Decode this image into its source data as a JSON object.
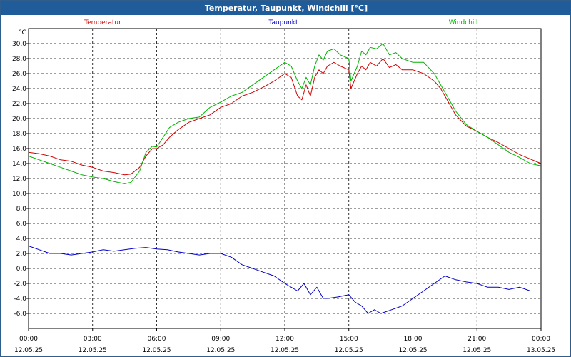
{
  "window": {
    "title": "Temperatur, Taupunkt, Windchill [°C]"
  },
  "chart_data": {
    "type": "line",
    "title": "Temperatur, Taupunkt, Windchill [°C]",
    "ylabel": "°C",
    "ylim": [
      -8,
      32
    ],
    "xlim": [
      0,
      24
    ],
    "yticks": [
      {
        "value": -6,
        "label": "-6,0"
      },
      {
        "value": -4,
        "label": "-4,0"
      },
      {
        "value": -2,
        "label": "-2,0"
      },
      {
        "value": 0,
        "label": "0,0"
      },
      {
        "value": 2,
        "label": "2,0"
      },
      {
        "value": 4,
        "label": "4,0"
      },
      {
        "value": 6,
        "label": "6,0"
      },
      {
        "value": 8,
        "label": "8,0"
      },
      {
        "value": 10,
        "label": "10,0"
      },
      {
        "value": 12,
        "label": "12,0"
      },
      {
        "value": 14,
        "label": "14,0"
      },
      {
        "value": 16,
        "label": "16,0"
      },
      {
        "value": 18,
        "label": "18,0"
      },
      {
        "value": 20,
        "label": "20,0"
      },
      {
        "value": 22,
        "label": "22,0"
      },
      {
        "value": 24,
        "label": "24,0"
      },
      {
        "value": 26,
        "label": "26,0"
      },
      {
        "value": 28,
        "label": "28,0"
      },
      {
        "value": 30,
        "label": "30,0"
      }
    ],
    "xticks": [
      {
        "value": 0,
        "time": "00:00",
        "date": "12.05.25"
      },
      {
        "value": 3,
        "time": "03:00",
        "date": "12.05.25"
      },
      {
        "value": 6,
        "time": "06:00",
        "date": "12.05.25"
      },
      {
        "value": 9,
        "time": "09:00",
        "date": "12.05.25"
      },
      {
        "value": 12,
        "time": "12:00",
        "date": "12.05.25"
      },
      {
        "value": 15,
        "time": "15:00",
        "date": "12.05.25"
      },
      {
        "value": 18,
        "time": "18:00",
        "date": "12.05.25"
      },
      {
        "value": 21,
        "time": "21:00",
        "date": "12.05.25"
      },
      {
        "value": 24,
        "time": "00:00",
        "date": "13.05.25"
      }
    ],
    "series": [
      {
        "name": "Temperatur",
        "color": "#d40000",
        "x": [
          0,
          0.5,
          1,
          1.5,
          2,
          2.5,
          3,
          3.5,
          4,
          4.5,
          4.8,
          5.2,
          5.5,
          5.8,
          6,
          6.3,
          6.6,
          7,
          7.5,
          8,
          8.5,
          9,
          9.5,
          10,
          10.5,
          11,
          11.5,
          12,
          12.3,
          12.6,
          12.8,
          13,
          13.2,
          13.4,
          13.6,
          13.8,
          14,
          14.3,
          14.6,
          15,
          15.1,
          15.4,
          15.6,
          15.8,
          16,
          16.3,
          16.6,
          16.9,
          17.2,
          17.5,
          18,
          18.5,
          19,
          19.3,
          19.6,
          20,
          20.5,
          21,
          21.5,
          22,
          22.5,
          23,
          23.5,
          24
        ],
        "values": [
          15.5,
          15.3,
          15.0,
          14.5,
          14.3,
          13.8,
          13.5,
          13.0,
          12.8,
          12.5,
          12.6,
          13.5,
          15.0,
          16.0,
          16.0,
          16.5,
          17.5,
          18.5,
          19.5,
          20.0,
          20.5,
          21.5,
          22.0,
          23.0,
          23.5,
          24.2,
          25.0,
          26.0,
          25.5,
          23.0,
          22.5,
          24.5,
          23.0,
          25.5,
          26.5,
          26.0,
          27.0,
          27.5,
          27.0,
          26.5,
          24.0,
          26.0,
          27.0,
          26.5,
          27.5,
          27.0,
          28.0,
          26.8,
          27.2,
          26.5,
          26.5,
          26.0,
          25.0,
          24.0,
          22.5,
          20.5,
          19.0,
          18.3,
          17.5,
          16.8,
          16.0,
          15.2,
          14.6,
          14.0
        ]
      },
      {
        "name": "Taupunkt",
        "color": "#0000c8",
        "x": [
          0,
          0.5,
          1,
          1.5,
          2,
          2.5,
          3,
          3.5,
          4,
          4.5,
          5,
          5.5,
          6,
          6.5,
          7,
          7.5,
          8,
          8.5,
          9,
          9.5,
          10,
          10.5,
          11,
          11.5,
          12,
          12.3,
          12.6,
          12.9,
          13.2,
          13.5,
          13.8,
          14,
          14.5,
          15,
          15.3,
          15.6,
          15.9,
          16.2,
          16.5,
          17,
          17.5,
          18,
          18.5,
          19,
          19.5,
          20,
          20.5,
          21,
          21.5,
          22,
          22.5,
          23,
          23.5,
          24
        ],
        "values": [
          3.0,
          2.5,
          2.0,
          2.0,
          1.8,
          2.0,
          2.2,
          2.5,
          2.3,
          2.5,
          2.7,
          2.8,
          2.6,
          2.5,
          2.2,
          2.0,
          1.8,
          2.0,
          2.0,
          1.5,
          0.5,
          0.0,
          -0.5,
          -1.0,
          -2.0,
          -2.5,
          -3.0,
          -2.0,
          -3.5,
          -2.5,
          -4.0,
          -4.0,
          -3.8,
          -3.5,
          -4.5,
          -5.0,
          -6.0,
          -5.5,
          -6.0,
          -5.5,
          -5.0,
          -4.0,
          -3.0,
          -2.0,
          -1.0,
          -1.5,
          -1.8,
          -2.0,
          -2.5,
          -2.5,
          -2.8,
          -2.5,
          -3.0,
          -3.0
        ]
      },
      {
        "name": "Windchill",
        "color": "#00b400",
        "x": [
          0,
          0.5,
          1,
          1.5,
          2,
          2.5,
          3,
          3.5,
          4,
          4.5,
          4.8,
          5.2,
          5.5,
          5.8,
          6,
          6.3,
          6.6,
          7,
          7.5,
          8,
          8.5,
          9,
          9.5,
          10,
          10.5,
          11,
          11.5,
          12,
          12.3,
          12.6,
          12.8,
          13,
          13.2,
          13.4,
          13.6,
          13.8,
          14,
          14.3,
          14.6,
          15,
          15.1,
          15.4,
          15.6,
          15.8,
          16,
          16.3,
          16.6,
          16.9,
          17.2,
          17.5,
          18,
          18.5,
          19,
          19.3,
          19.6,
          20,
          20.5,
          21,
          21.5,
          22,
          22.5,
          23,
          23.5,
          24
        ],
        "values": [
          15.0,
          14.5,
          14.0,
          13.5,
          13.0,
          12.5,
          12.2,
          12.0,
          11.6,
          11.3,
          11.5,
          13.0,
          15.5,
          16.3,
          16.2,
          17.5,
          18.8,
          19.5,
          20.0,
          20.2,
          21.5,
          22.2,
          23.0,
          23.5,
          24.5,
          25.5,
          26.5,
          27.5,
          27.0,
          25.0,
          24.0,
          25.5,
          24.5,
          27.0,
          28.5,
          27.8,
          29.0,
          29.3,
          28.5,
          28.0,
          25.0,
          27.0,
          29.0,
          28.5,
          29.5,
          29.3,
          30.0,
          28.5,
          28.8,
          28.0,
          27.5,
          27.5,
          26.0,
          24.5,
          23.0,
          21.0,
          19.2,
          18.3,
          17.5,
          16.5,
          15.5,
          14.8,
          14.0,
          13.7
        ]
      }
    ]
  }
}
